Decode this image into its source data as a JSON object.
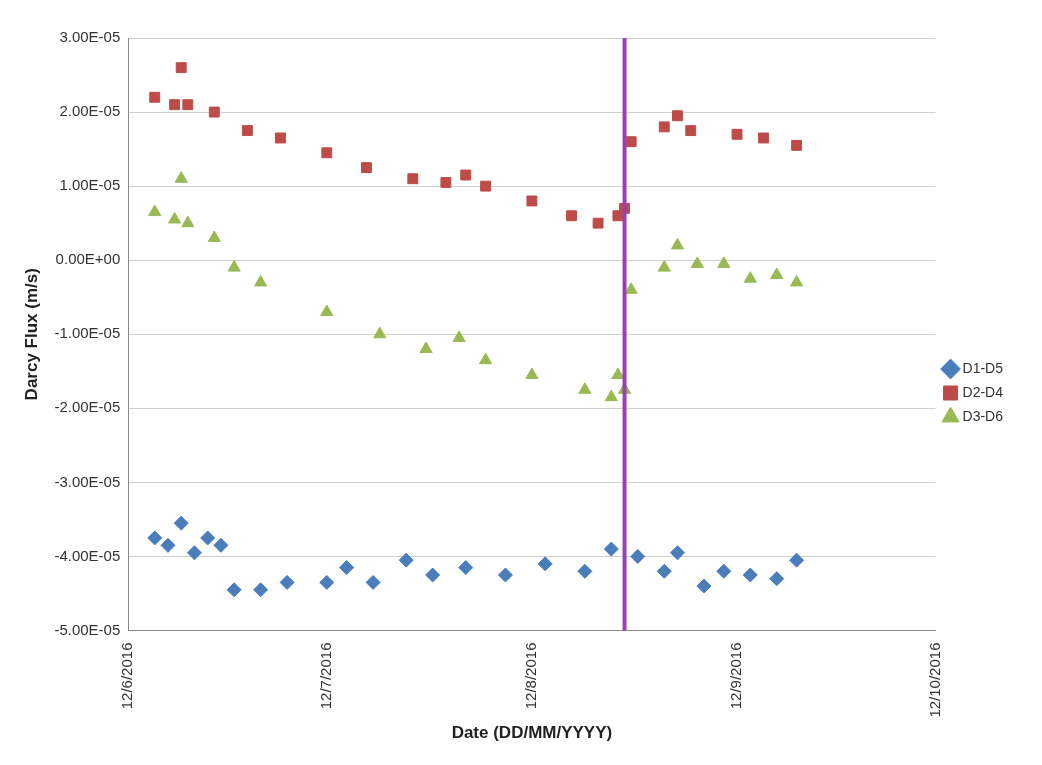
{
  "chart_data": {
    "type": "scatter",
    "xlabel": "Date (DD/MM/YYYY)",
    "ylabel": "Darcy Flux (m/s)",
    "xlim": [
      "2016-06-12",
      "2016-10-12"
    ],
    "xticks": [
      {
        "value": "2016-06-12",
        "label": "12/6/2016"
      },
      {
        "value": "2016-07-12",
        "label": "12/7/2016"
      },
      {
        "value": "2016-08-12",
        "label": "12/8/2016"
      },
      {
        "value": "2016-09-12",
        "label": "12/9/2016"
      },
      {
        "value": "2016-10-12",
        "label": "12/10/2016"
      }
    ],
    "ylim": [
      -5e-05,
      3e-05
    ],
    "yticks": [
      {
        "value": -5e-05,
        "label": "-5.00E-05"
      },
      {
        "value": -4e-05,
        "label": "-4.00E-05"
      },
      {
        "value": -3e-05,
        "label": "-3.00E-05"
      },
      {
        "value": -2e-05,
        "label": "-2.00E-05"
      },
      {
        "value": -1e-05,
        "label": "-1.00E-05"
      },
      {
        "value": 0,
        "label": "0.00E+00"
      },
      {
        "value": 1e-05,
        "label": "1.00E-05"
      },
      {
        "value": 2e-05,
        "label": "2.00E-05"
      },
      {
        "value": 3e-05,
        "label": "3.00E-05"
      }
    ],
    "grid": "y",
    "legend": "right",
    "ref_lines": [
      {
        "axis": "x",
        "value": "2016-08-26",
        "color": "#9b3fb5"
      }
    ],
    "series": [
      {
        "name": "D1-D5",
        "color": "#4a7ebb",
        "marker": "diamond",
        "x": [
          "2016-06-16",
          "2016-06-18",
          "2016-06-20",
          "2016-06-22",
          "2016-06-24",
          "2016-06-26",
          "2016-06-28",
          "2016-07-02",
          "2016-07-06",
          "2016-07-12",
          "2016-07-15",
          "2016-07-19",
          "2016-07-24",
          "2016-07-28",
          "2016-08-02",
          "2016-08-08",
          "2016-08-14",
          "2016-08-20",
          "2016-08-24",
          "2016-08-28",
          "2016-09-01",
          "2016-09-03",
          "2016-09-07",
          "2016-09-10",
          "2016-09-14",
          "2016-09-18",
          "2016-09-21"
        ],
        "values": [
          -3.75e-05,
          -3.85e-05,
          -3.55e-05,
          -3.95e-05,
          -3.75e-05,
          -3.85e-05,
          -4.45e-05,
          -4.45e-05,
          -4.35e-05,
          -4.35e-05,
          -4.15e-05,
          -4.35e-05,
          -4.05e-05,
          -4.25e-05,
          -4.15e-05,
          -4.25e-05,
          -4.1e-05,
          -4.2e-05,
          -3.9e-05,
          -4e-05,
          -4.2e-05,
          -3.95e-05,
          -4.4e-05,
          -4.2e-05,
          -4.25e-05,
          -4.3e-05,
          -4.05e-05
        ]
      },
      {
        "name": "D2-D4",
        "color": "#be4b48",
        "marker": "square",
        "x": [
          "2016-06-16",
          "2016-06-19",
          "2016-06-20",
          "2016-06-21",
          "2016-06-25",
          "2016-06-30",
          "2016-07-05",
          "2016-07-12",
          "2016-07-18",
          "2016-07-25",
          "2016-07-30",
          "2016-08-02",
          "2016-08-05",
          "2016-08-12",
          "2016-08-18",
          "2016-08-22",
          "2016-08-25",
          "2016-08-26",
          "2016-08-27",
          "2016-09-01",
          "2016-09-03",
          "2016-09-05",
          "2016-09-12",
          "2016-09-16",
          "2016-09-21"
        ],
        "values": [
          2.2e-05,
          2.1e-05,
          2.6e-05,
          2.1e-05,
          2e-05,
          1.75e-05,
          1.65e-05,
          1.45e-05,
          1.25e-05,
          1.1e-05,
          1.05e-05,
          1.15e-05,
          1e-05,
          8e-06,
          6e-06,
          5e-06,
          6e-06,
          7e-06,
          1.6e-05,
          1.8e-05,
          1.95e-05,
          1.75e-05,
          1.7e-05,
          1.65e-05,
          1.55e-05
        ]
      },
      {
        "name": "D3-D6",
        "color": "#98b954",
        "marker": "triangle",
        "x": [
          "2016-06-16",
          "2016-06-19",
          "2016-06-20",
          "2016-06-21",
          "2016-06-25",
          "2016-06-28",
          "2016-07-02",
          "2016-07-12",
          "2016-07-20",
          "2016-07-27",
          "2016-08-01",
          "2016-08-05",
          "2016-08-12",
          "2016-08-20",
          "2016-08-24",
          "2016-08-25",
          "2016-08-26",
          "2016-08-27",
          "2016-09-01",
          "2016-09-03",
          "2016-09-06",
          "2016-09-10",
          "2016-09-14",
          "2016-09-18",
          "2016-09-21"
        ],
        "values": [
          6.5e-06,
          5.5e-06,
          1.1e-05,
          5e-06,
          3e-06,
          -1e-06,
          -3e-06,
          -7e-06,
          -1e-05,
          -1.2e-05,
          -1.05e-05,
          -1.35e-05,
          -1.55e-05,
          -1.75e-05,
          -1.85e-05,
          -1.55e-05,
          -1.75e-05,
          -4e-06,
          -1e-06,
          2e-06,
          -5e-07,
          -5e-07,
          -2.5e-06,
          -2e-06,
          -3e-06
        ]
      }
    ]
  }
}
